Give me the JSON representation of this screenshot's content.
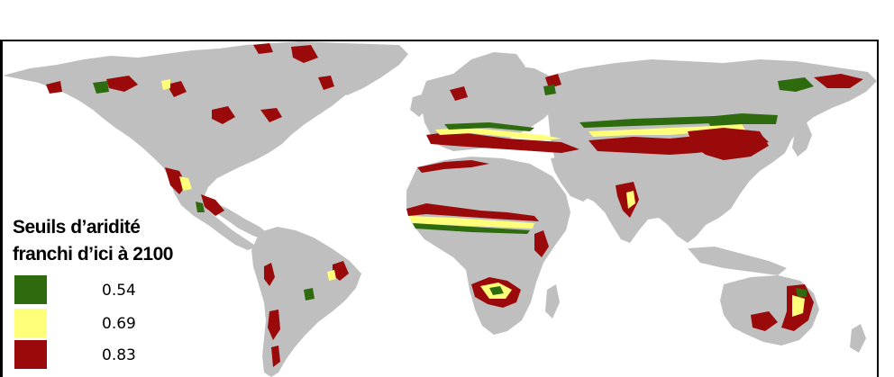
{
  "legend": {
    "title_line1": "Seuils d’aridité",
    "title_line2": "franchi d’ici à 2100",
    "items": [
      {
        "value": "0.54",
        "color": "#2e6b0e"
      },
      {
        "value": "0.69",
        "color": "#ffff7a"
      },
      {
        "value": "0.83",
        "color": "#9b0a0a"
      }
    ]
  },
  "colors": {
    "land": "#bfbfbf",
    "ocean": "#ffffff",
    "threshold_054": "#2e6b0e",
    "threshold_069": "#ffff7a",
    "threshold_083": "#9b0a0a"
  }
}
